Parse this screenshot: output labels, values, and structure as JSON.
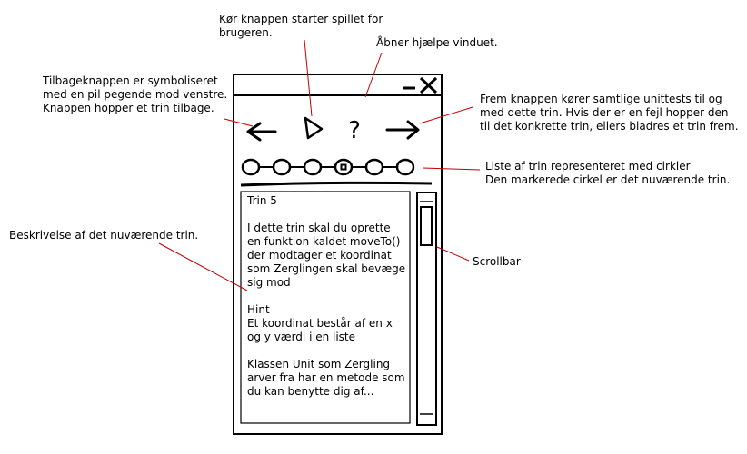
{
  "annotations": {
    "run_button": [
      "Kør knappen starter spillet for",
      "brugeren."
    ],
    "help_button": [
      "Åbner hjælpe vinduet."
    ],
    "back_button": [
      "Tilbageknappen er symboliseret",
      "med en pil pegende mod venstre.",
      "Knappen hopper et trin tilbage."
    ],
    "forward_button": [
      "Frem knappen kører samtlige unittests til og",
      "med dette trin. Hvis der er en fejl hopper den",
      "til det konkrette trin, ellers bladres et trin frem."
    ],
    "step_list": [
      "Liste af trin representeret med cirkler",
      "Den markerede cirkel er det nuværende trin."
    ],
    "description": [
      "Beskrivelse af det nuværende trin."
    ],
    "scrollbar": [
      "Scrollbar"
    ]
  },
  "window": {
    "minimize_glyph": "—",
    "close_glyph": "X",
    "help_glyph": "?"
  },
  "step_list": {
    "count": 6,
    "current_index": 4
  },
  "description_lines": [
    "Trin 5",
    "",
    "I dette trin skal du oprette",
    "en funktion kaldet moveTo()",
    "der modtager et koordinat",
    "som Zerglingen skal bevæge",
    "sig mod",
    "",
    "Hint",
    "Et koordinat består af en x",
    "og y værdi i en liste",
    "",
    "Klassen Unit som Zergling",
    "arver fra har en metode som",
    "du kan benytte dig af..."
  ]
}
